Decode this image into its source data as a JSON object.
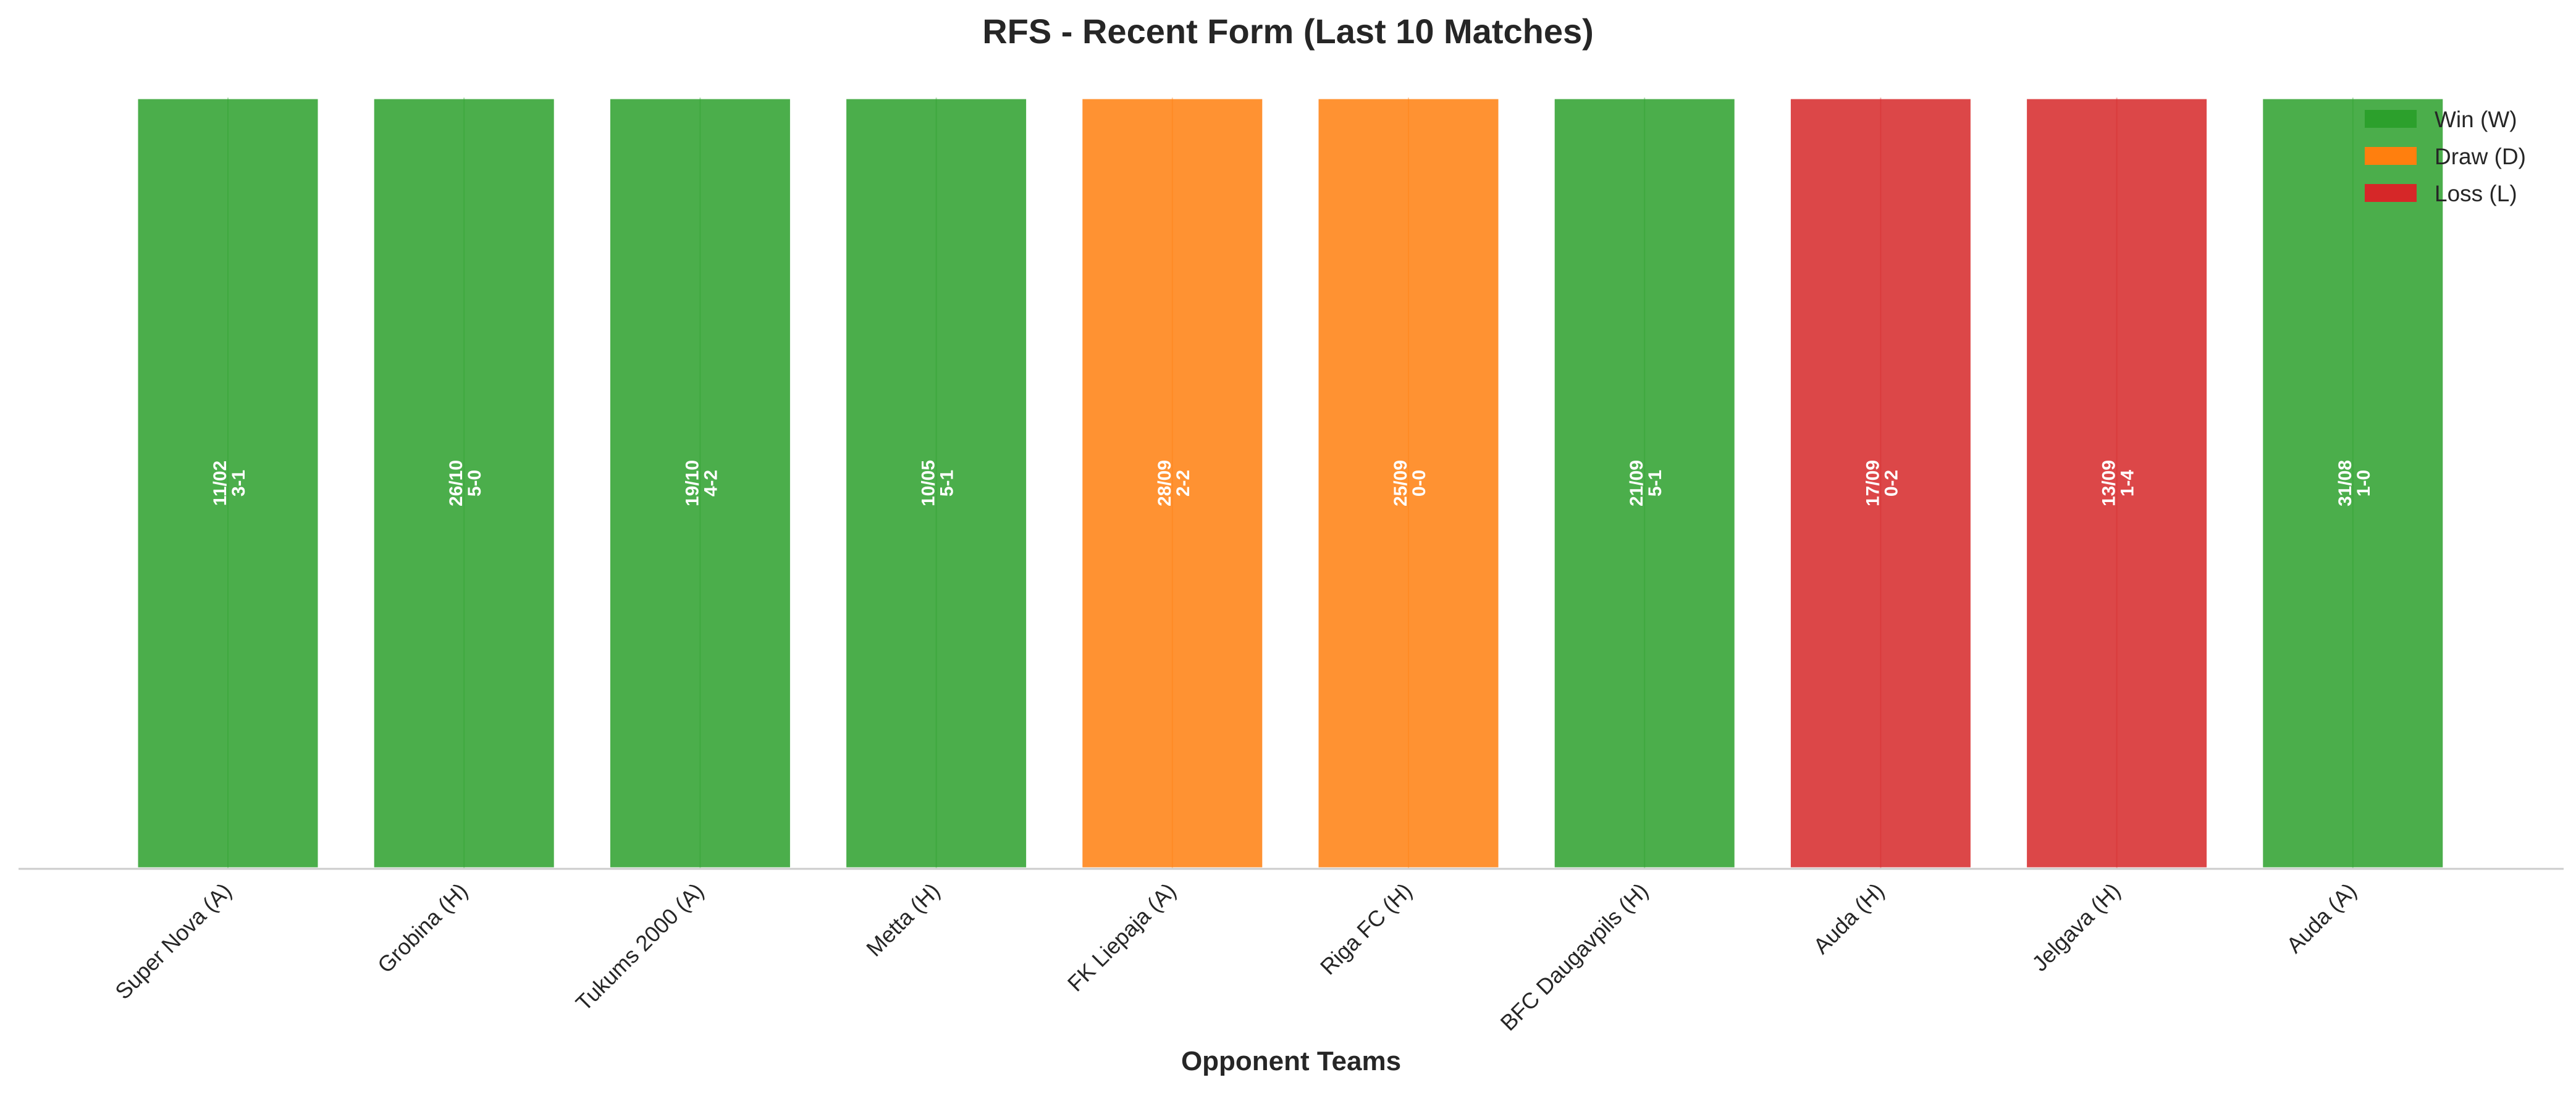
{
  "chart_data": {
    "type": "bar",
    "title": "RFS - Recent Form (Last 10 Matches)",
    "xlabel": "Opponent Teams",
    "ylabel": "",
    "ylim": [
      0,
      1
    ],
    "grid": false,
    "legend_position": "top-right",
    "categories": [
      "Super Nova (A)",
      "Grobina (H)",
      "Tukums 2000 (A)",
      "Metta (H)",
      "FK Liepaja (A)",
      "Riga FC (H)",
      "BFC Daugavpils (H)",
      "Auda (H)",
      "Jelgava (H)",
      "Auda (A)"
    ],
    "values": [
      1,
      1,
      1,
      1,
      1,
      1,
      1,
      1,
      1,
      1
    ],
    "results": [
      "W",
      "W",
      "W",
      "W",
      "D",
      "D",
      "W",
      "L",
      "L",
      "W"
    ],
    "dates": [
      "11/02",
      "26/10",
      "19/10",
      "10/05",
      "28/09",
      "25/09",
      "21/09",
      "17/09",
      "13/09",
      "31/08"
    ],
    "scores": [
      "3-1",
      "5-0",
      "4-2",
      "5-1",
      "2-2",
      "0-0",
      "5-1",
      "0-2",
      "1-4",
      "1-0"
    ],
    "legend": [
      {
        "key": "W",
        "label": "Win (W)",
        "color": "#2ca02c"
      },
      {
        "key": "D",
        "label": "Draw (D)",
        "color": "#ff7f0e"
      },
      {
        "key": "L",
        "label": "Loss (L)",
        "color": "#d62728"
      }
    ],
    "bar_alpha": 0.85
  }
}
